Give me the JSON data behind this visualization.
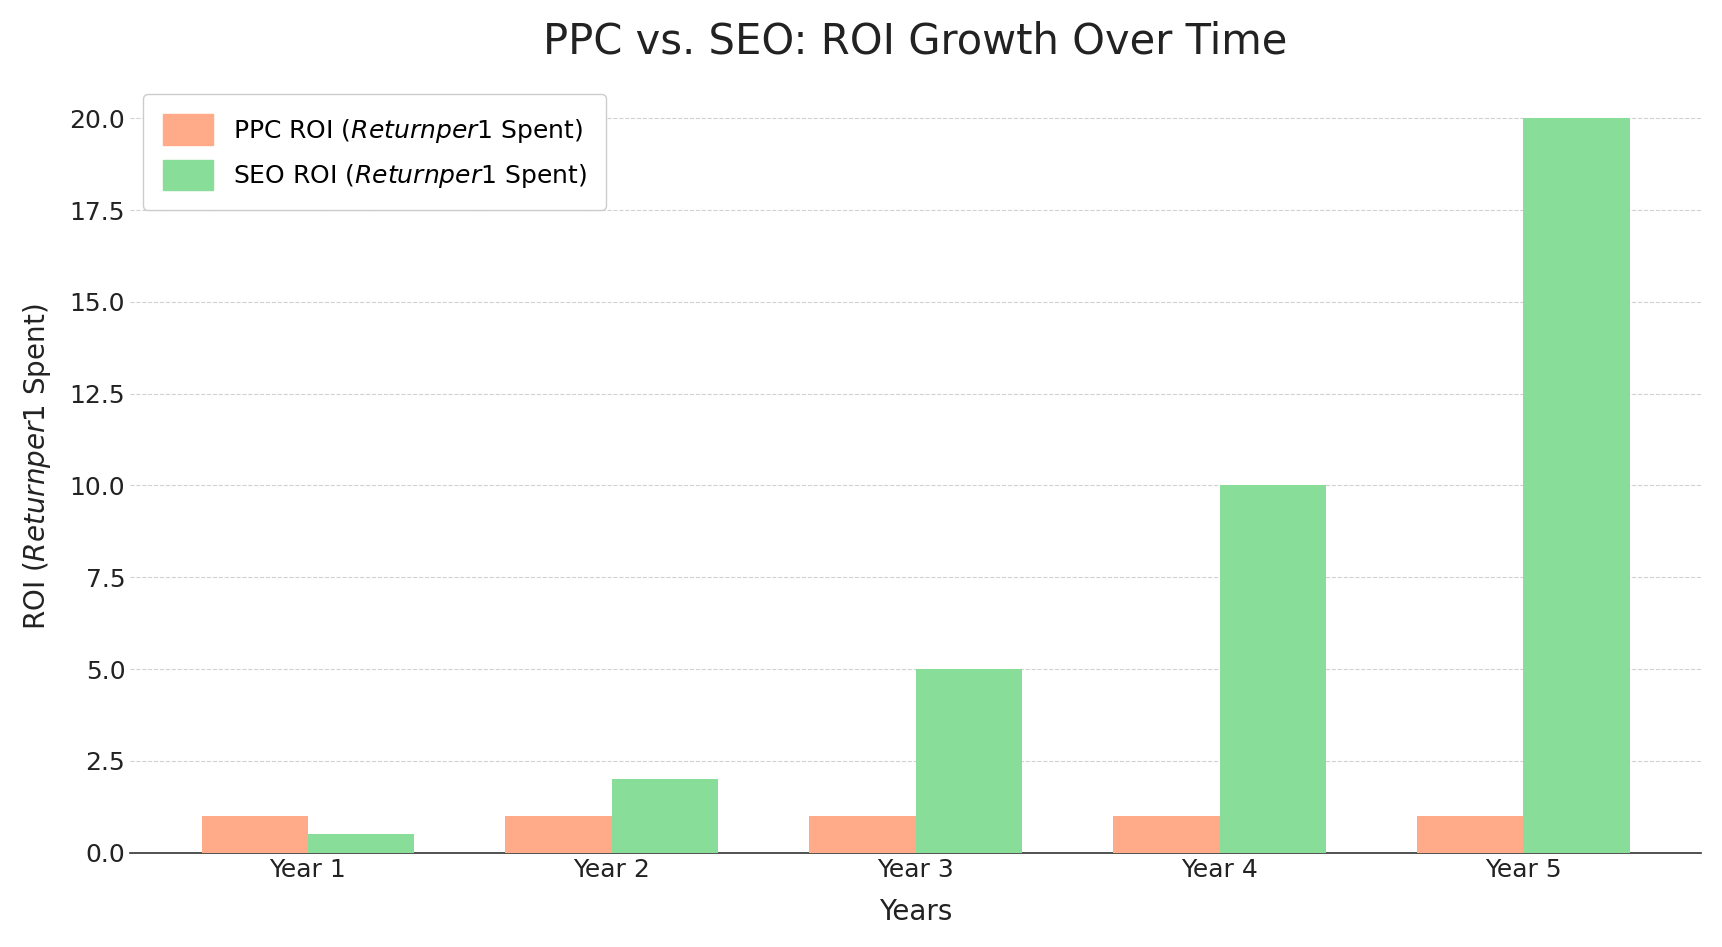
{
  "title": "PPC vs. SEO: ROI Growth Over Time",
  "xlabel": "Years",
  "categories": [
    "Year 1",
    "Year 2",
    "Year 3",
    "Year 4",
    "Year 5"
  ],
  "ppc_values": [
    1.0,
    1.0,
    1.0,
    1.0,
    1.0
  ],
  "seo_values": [
    0.5,
    2.0,
    5.0,
    10.0,
    20.0
  ],
  "ppc_color": "#FFAA88",
  "seo_color": "#88DD99",
  "background_color": "#FFFFFF",
  "grid_color": "#CCCCCC",
  "ylim": [
    0,
    21
  ],
  "yticks": [
    0.0,
    2.5,
    5.0,
    7.5,
    10.0,
    12.5,
    15.0,
    17.5,
    20.0
  ],
  "title_fontsize": 30,
  "axis_label_fontsize": 20,
  "tick_fontsize": 18,
  "legend_fontsize": 18,
  "bar_width": 0.35,
  "ppc_legend_normal": "PPC ROI (",
  "ppc_legend_italic": "Returnper",
  "ppc_legend_normal2": "1 Spent)",
  "seo_legend_normal": "SEO ROI (",
  "seo_legend_italic": "Returnper",
  "seo_legend_normal2": "1 Spent)"
}
